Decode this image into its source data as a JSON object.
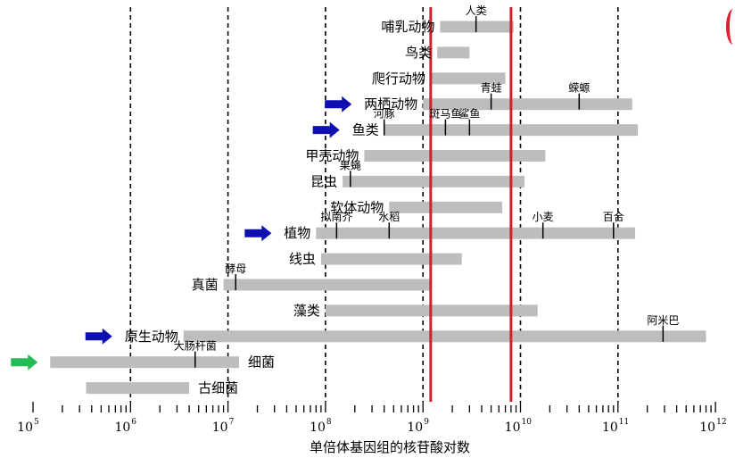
{
  "chart_data": {
    "type": "range-bar",
    "xlabel": "单倍体基因组的核苷酸对数",
    "xscale": "log",
    "xlim": [
      100000,
      1000000000000
    ],
    "tick_labels": [
      {
        "base": "10",
        "exp": "5"
      },
      {
        "base": "10",
        "exp": "6"
      },
      {
        "base": "10",
        "exp": "7"
      },
      {
        "base": "10",
        "exp": "8"
      },
      {
        "base": "10",
        "exp": "9"
      },
      {
        "base": "10",
        "exp": "10"
      },
      {
        "base": "10",
        "exp": "11"
      },
      {
        "base": "10",
        "exp": "12"
      }
    ],
    "gridlines": [
      1000000,
      10000000,
      100000000,
      1000000000,
      10000000000,
      100000000000
    ],
    "highlight_lines": [
      1200000000,
      8000000000
    ],
    "groups": [
      {
        "name": "哺乳动物",
        "range": [
          1500000000,
          8500000000
        ],
        "markers": [
          {
            "label": "人类",
            "value": 3500000000
          }
        ],
        "arrow": null
      },
      {
        "name": "鸟类",
        "range": [
          1400000000,
          3000000000
        ],
        "markers": [],
        "arrow": null
      },
      {
        "name": "爬行动物",
        "range": [
          1200000000,
          7000000000
        ],
        "markers": [],
        "arrow": null
      },
      {
        "name": "两栖动物",
        "range": [
          1000000000,
          140000000000
        ],
        "markers": [
          {
            "label": "青蛙",
            "value": 5000000000
          },
          {
            "label": "蝾螈",
            "value": 40000000000
          }
        ],
        "arrow": "blue"
      },
      {
        "name": "鱼类",
        "range": [
          400000000,
          160000000000
        ],
        "markers": [
          {
            "label": "河豚",
            "value": 400000000
          },
          {
            "label": "斑马鱼",
            "value": 1700000000
          },
          {
            "label": "鲨鱼",
            "value": 3000000000
          }
        ],
        "arrow": "blue"
      },
      {
        "name": "甲壳动物",
        "range": [
          250000000,
          18000000000
        ],
        "markers": [],
        "arrow": null
      },
      {
        "name": "昆虫",
        "range": [
          150000000,
          11000000000
        ],
        "markers": [
          {
            "label": "果蝇",
            "value": 180000000
          }
        ],
        "arrow": null
      },
      {
        "name": "软体动物",
        "range": [
          450000000,
          6500000000
        ],
        "markers": [],
        "arrow": null
      },
      {
        "name": "植物",
        "range": [
          80000000,
          150000000000
        ],
        "markers": [
          {
            "label": "拟南芥",
            "value": 130000000
          },
          {
            "label": "水稻",
            "value": 450000000
          },
          {
            "label": "小麦",
            "value": 17000000000
          },
          {
            "label": "百合",
            "value": 90000000000
          }
        ],
        "arrow": "blue"
      },
      {
        "name": "线虫",
        "range": [
          90000000,
          2500000000
        ],
        "markers": [],
        "arrow": null
      },
      {
        "name": "真菌",
        "range": [
          9000000,
          1200000000
        ],
        "markers": [
          {
            "label": "酵母",
            "value": 12000000
          }
        ],
        "arrow": null
      },
      {
        "name": "藻类",
        "range": [
          100000000,
          15000000000
        ],
        "markers": [],
        "arrow": null
      },
      {
        "name": "原生动物",
        "range": [
          3500000,
          800000000000
        ],
        "markers": [
          {
            "label": "阿米巴",
            "value": 290000000000
          }
        ],
        "arrow": "blue"
      },
      {
        "name": "细菌",
        "range": [
          150000,
          13000000
        ],
        "markers": [
          {
            "label": "大肠杆菌",
            "value": 4600000
          }
        ],
        "arrow": "green"
      },
      {
        "name": "古细菌",
        "range": [
          350000,
          4000000
        ],
        "markers": [],
        "arrow": null
      }
    ],
    "colors": {
      "bar": "#bdbdbd",
      "highlight": "#d21f2a",
      "arrow_blue": "#1010b0",
      "arrow_green": "#22bb55",
      "grid": "#000000"
    }
  }
}
